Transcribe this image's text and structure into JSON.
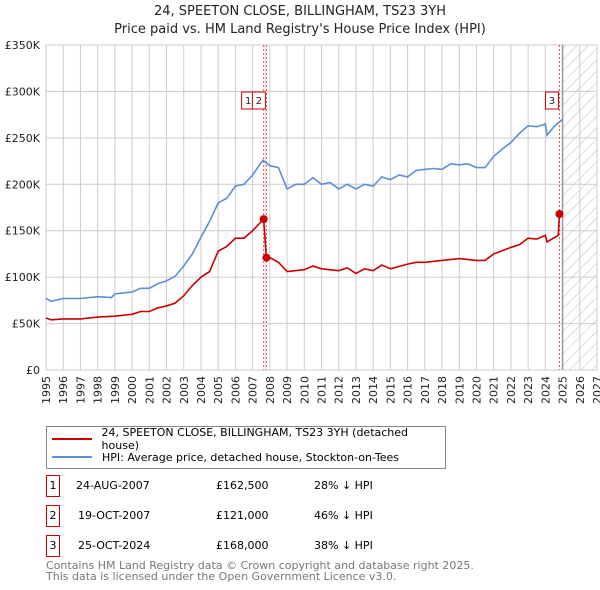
{
  "chart_data": {
    "type": "line",
    "title": "24, SPEETON CLOSE, BILLINGHAM, TS23 3YH",
    "subtitle": "Price paid vs. HM Land Registry's House Price Index (HPI)",
    "xlim": [
      1995,
      2027
    ],
    "ylim": [
      0,
      350000
    ],
    "x_ticks": [
      "1995",
      "1996",
      "1997",
      "1998",
      "1999",
      "2000",
      "2001",
      "2002",
      "2003",
      "2004",
      "2005",
      "2006",
      "2007",
      "2008",
      "2009",
      "2010",
      "2011",
      "2012",
      "2013",
      "2014",
      "2015",
      "2016",
      "2017",
      "2018",
      "2019",
      "2020",
      "2021",
      "2022",
      "2023",
      "2024",
      "2025",
      "2026",
      "2027"
    ],
    "y_ticks": [
      {
        "v": 0,
        "label": "£0"
      },
      {
        "v": 50000,
        "label": "£50K"
      },
      {
        "v": 100000,
        "label": "£100K"
      },
      {
        "v": 150000,
        "label": "£150K"
      },
      {
        "v": 200000,
        "label": "£200K"
      },
      {
        "v": 250000,
        "label": "£250K"
      },
      {
        "v": 300000,
        "label": "£300K"
      },
      {
        "v": 350000,
        "label": "£350K"
      }
    ],
    "grid": true,
    "forecast_start": 2025,
    "series": [
      {
        "name": "24, SPEETON CLOSE, BILLINGHAM, TS23 3YH (detached house)",
        "color": "#cc0000",
        "x": [
          1995,
          1995.3,
          1996,
          1997,
          1998,
          1999,
          2000,
          2000.5,
          2001,
          2001.5,
          2002,
          2002.5,
          2003,
          2003.5,
          2004,
          2004.5,
          2005,
          2005.5,
          2006,
          2006.5,
          2007,
          2007.64,
          2007.8,
          2008,
          2008.5,
          2009,
          2010,
          2010.5,
          2011,
          2012,
          2012.5,
          2013,
          2013.5,
          2014,
          2014.5,
          2015,
          2016,
          2016.5,
          2017,
          2018,
          2019,
          2020,
          2020.5,
          2021,
          2022,
          2022.5,
          2023,
          2023.5,
          2024,
          2024.1,
          2024.75,
          2024.82
        ],
        "y": [
          56000,
          54000,
          55000,
          55000,
          57000,
          58000,
          60000,
          63000,
          63000,
          67000,
          69000,
          72000,
          80000,
          91000,
          100000,
          106000,
          128000,
          133000,
          142000,
          142000,
          150000,
          162500,
          121000,
          121000,
          116000,
          106000,
          108000,
          112000,
          109000,
          107000,
          110000,
          104000,
          109000,
          107000,
          113000,
          109000,
          114000,
          116000,
          116000,
          118000,
          120000,
          118000,
          118000,
          125000,
          132000,
          135000,
          142000,
          141000,
          145000,
          138000,
          145000,
          168000
        ]
      },
      {
        "name": "HPI: Average price, detached house, Stockton-on-Tees",
        "color": "#5b8fd6",
        "x": [
          1995,
          1995.3,
          1996,
          1997,
          1998,
          1998.8,
          1999,
          2000,
          2000.5,
          2001,
          2001.5,
          2002,
          2002.5,
          2003,
          2003.5,
          2004,
          2004.5,
          2005,
          2005.5,
          2006,
          2006.5,
          2007,
          2007.6,
          2008,
          2008.5,
          2009,
          2009.5,
          2010,
          2010.5,
          2011,
          2011.5,
          2012,
          2012.5,
          2013,
          2013.5,
          2014,
          2014.5,
          2015,
          2015.5,
          2016,
          2016.5,
          2017,
          2017.5,
          2018,
          2018.5,
          2019,
          2019.5,
          2020,
          2020.5,
          2021,
          2021.5,
          2022,
          2022.5,
          2023,
          2023.5,
          2024,
          2024.1,
          2024.5,
          2025
        ],
        "y": [
          77000,
          74000,
          77000,
          77000,
          79000,
          78000,
          82000,
          84000,
          88000,
          88000,
          93000,
          96000,
          101000,
          112000,
          125000,
          143000,
          160000,
          180000,
          185000,
          198000,
          200000,
          210000,
          226000,
          220000,
          218000,
          195000,
          200000,
          200000,
          207000,
          200000,
          202000,
          195000,
          200000,
          195000,
          200000,
          198000,
          208000,
          205000,
          210000,
          208000,
          215000,
          216000,
          217000,
          216000,
          222000,
          221000,
          222000,
          218000,
          218000,
          230000,
          238000,
          245000,
          255000,
          263000,
          262000,
          265000,
          253000,
          262000,
          270000
        ]
      }
    ],
    "sales": [
      {
        "num": "1",
        "x": 2007.64,
        "y": 162500,
        "date": "24-AUG-2007",
        "price": "£162,500",
        "hpi": "28% ↓ HPI"
      },
      {
        "num": "2",
        "x": 2007.8,
        "y": 121000,
        "date": "19-OCT-2007",
        "price": "£121,000",
        "hpi": "46% ↓ HPI"
      },
      {
        "num": "3",
        "x": 2024.82,
        "y": 168000,
        "date": "25-OCT-2024",
        "price": "£168,000",
        "hpi": "38% ↓ HPI"
      }
    ]
  },
  "footer": {
    "line1": "Contains HM Land Registry data © Crown copyright and database right 2025.",
    "line2": "This data is licensed under the Open Government Licence v3.0."
  }
}
